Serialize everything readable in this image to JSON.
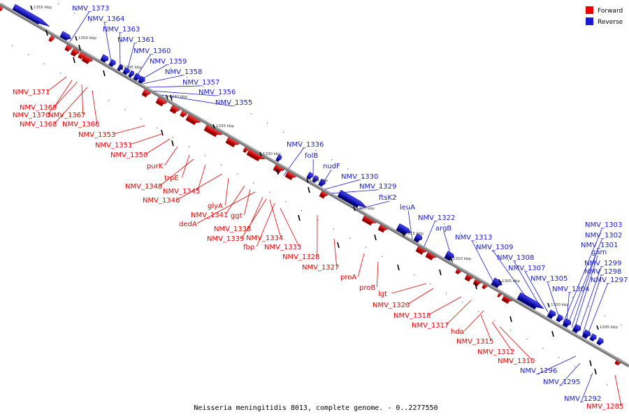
{
  "caption": "Neisseria meningitidis 8013, complete genome. - 0..2277550",
  "legend": [
    {
      "label": "Forward",
      "color": "#e60000"
    },
    {
      "label": "Reverse",
      "color": "#1a1acc"
    }
  ],
  "scale_ticks": [
    "1355 kbp",
    "1350 kbp",
    "1345 kbp",
    "1340 kbp",
    "1335 kbp",
    "1330 kbp",
    "1325 kbp",
    "1320 kbp",
    "1315 kbp",
    "1310 kbp",
    "1305 kbp",
    "1300 kbp",
    "1295 kbp"
  ],
  "forward_labels": [
    "NMV_1371",
    "NMV_1369",
    "NMV_1370",
    "NMV_1367",
    "NMV_1368",
    "NMV_1366",
    "NMV_1353",
    "NMV_1351",
    "NMV_1350",
    "purK",
    "trpE",
    "NMV_1348",
    "NMV_1345",
    "NMV_1346",
    "glyA",
    "NMV_1341",
    "ggt",
    "dedA",
    "NMV_1338",
    "NMV_1334",
    "NMV_1339",
    "fbp",
    "NMV_1333",
    "NMV_1328",
    "NMV_1327",
    "proA",
    "proB",
    "lgt",
    "NMV_1320",
    "NMV_1318",
    "NMV_1317",
    "hda",
    "NMV_1315",
    "NMV_1312",
    "NMV_1310",
    "NMV_1285"
  ],
  "reverse_labels": [
    "NMV_1373",
    "NMV_1364",
    "NMV_1363",
    "NMV_1361",
    "NMV_1360",
    "NMV_1359",
    "NMV_1358",
    "NMV_1357",
    "NMV_1356",
    "NMV_1355",
    "NMV_1336",
    "folB",
    "nudF",
    "NMV_1330",
    "NMV_1329",
    "ftsK2",
    "leuA",
    "NMV_1322",
    "argB",
    "NMV_1313",
    "NMV_1309",
    "NMV_1308",
    "NMV_1307",
    "NMV_1305",
    "NMV_1304",
    "NMV_1303",
    "NMV_1302",
    "NMV_1301",
    "gam",
    "NMV_1299",
    "NMV_1298",
    "NMV_1297",
    "NMV_1296",
    "NMV_1295",
    "NMV_1292"
  ]
}
